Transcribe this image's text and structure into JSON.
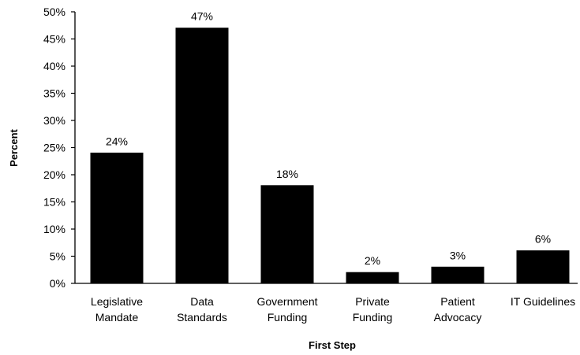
{
  "chart_data": {
    "type": "bar",
    "title": "",
    "xlabel": "First Step",
    "ylabel": "Percent",
    "categories": [
      [
        "Legislative",
        "Mandate"
      ],
      [
        "Data",
        "Standards"
      ],
      [
        "Government",
        "Funding"
      ],
      [
        "Private",
        "Funding"
      ],
      [
        "Patient",
        "Advocacy"
      ],
      [
        "IT Guidelines"
      ]
    ],
    "values": [
      24,
      47,
      18,
      2,
      3,
      6
    ],
    "data_labels": [
      "24%",
      "47%",
      "18%",
      "2%",
      "3%",
      "6%"
    ],
    "yticks": [
      0,
      5,
      10,
      15,
      20,
      25,
      30,
      35,
      40,
      45,
      50
    ],
    "ytick_labels": [
      "0%",
      "5%",
      "10%",
      "15%",
      "20%",
      "25%",
      "30%",
      "35%",
      "40%",
      "45%",
      "50%"
    ],
    "ylim": [
      0,
      50
    ],
    "grid": false,
    "legend": "none",
    "bar_color": "#000000"
  }
}
